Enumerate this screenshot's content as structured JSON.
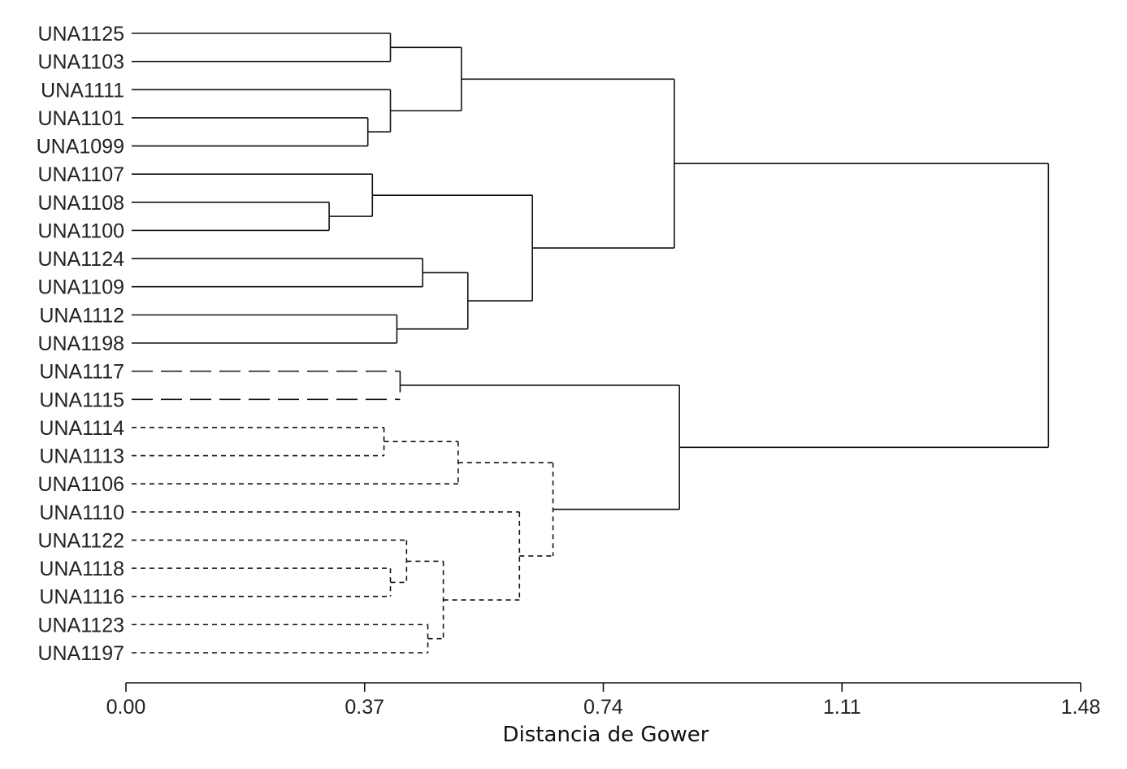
{
  "chart_data": {
    "type": "dendrogram",
    "xlabel": "Distancia de Gower",
    "xlim": [
      0,
      1.48
    ],
    "x_ticks": [
      "0.00",
      "0.37",
      "0.74",
      "1.11",
      "1.48"
    ],
    "leaves": [
      "UNA1125",
      "UNA1103",
      "UNA1111",
      "UNA1101",
      "UNA1099",
      "UNA1107",
      "UNA1108",
      "UNA1100",
      "UNA1124",
      "UNA1109",
      "UNA1112",
      "UNA1198",
      "UNA1117",
      "UNA1115",
      "UNA1114",
      "UNA1113",
      "UNA1106",
      "UNA1110",
      "UNA1122",
      "UNA1118",
      "UNA1116",
      "UNA1123",
      "UNA1197"
    ],
    "line_styles": {
      "solid": "solid",
      "long_dash": "long-dash",
      "short_dash": "short-dash"
    },
    "merges": [
      {
        "a": "UNA1101",
        "b": "UNA1099",
        "height": 0.375,
        "style": "solid"
      },
      {
        "a": "UNA1111",
        "b": 23,
        "height": 0.41,
        "style": "solid"
      },
      {
        "a": "UNA1125",
        "b": "UNA1103",
        "height": 0.41,
        "style": "solid"
      },
      {
        "a": 25,
        "b": 24,
        "height": 0.52,
        "style": "solid"
      },
      {
        "a": "UNA1108",
        "b": "UNA1100",
        "height": 0.315,
        "style": "solid"
      },
      {
        "a": "UNA1107",
        "b": 27,
        "height": 0.382,
        "style": "solid"
      },
      {
        "a": "UNA1124",
        "b": "UNA1109",
        "height": 0.46,
        "style": "solid"
      },
      {
        "a": "UNA1112",
        "b": "UNA1198",
        "height": 0.42,
        "style": "solid"
      },
      {
        "a": 29,
        "b": 30,
        "height": 0.53,
        "style": "solid"
      },
      {
        "a": 28,
        "b": 31,
        "height": 0.63,
        "style": "solid"
      },
      {
        "a": 26,
        "b": 32,
        "height": 0.85,
        "style": "solid"
      },
      {
        "a": "UNA1117",
        "b": "UNA1115",
        "height": 0.425,
        "style": "long_dash"
      },
      {
        "a": "UNA1114",
        "b": "UNA1113",
        "height": 0.4,
        "style": "short_dash"
      },
      {
        "a": 35,
        "b": "UNA1106",
        "height": 0.515,
        "style": "short_dash"
      },
      {
        "a": "UNA1118",
        "b": "UNA1116",
        "height": 0.41,
        "style": "short_dash"
      },
      {
        "a": "UNA1122",
        "b": 37,
        "height": 0.435,
        "style": "short_dash"
      },
      {
        "a": "UNA1123",
        "b": "UNA1197",
        "height": 0.468,
        "style": "short_dash"
      },
      {
        "a": 38,
        "b": 39,
        "height": 0.492,
        "style": "short_dash"
      },
      {
        "a": "UNA1110",
        "b": 40,
        "height": 0.61,
        "style": "short_dash"
      },
      {
        "a": 36,
        "b": 41,
        "height": 0.662,
        "style": "short_dash"
      },
      {
        "a": 34,
        "b": 42,
        "height": 0.858,
        "style": "solid"
      },
      {
        "a": 33,
        "b": 43,
        "height": 1.43,
        "style": "solid"
      }
    ]
  }
}
